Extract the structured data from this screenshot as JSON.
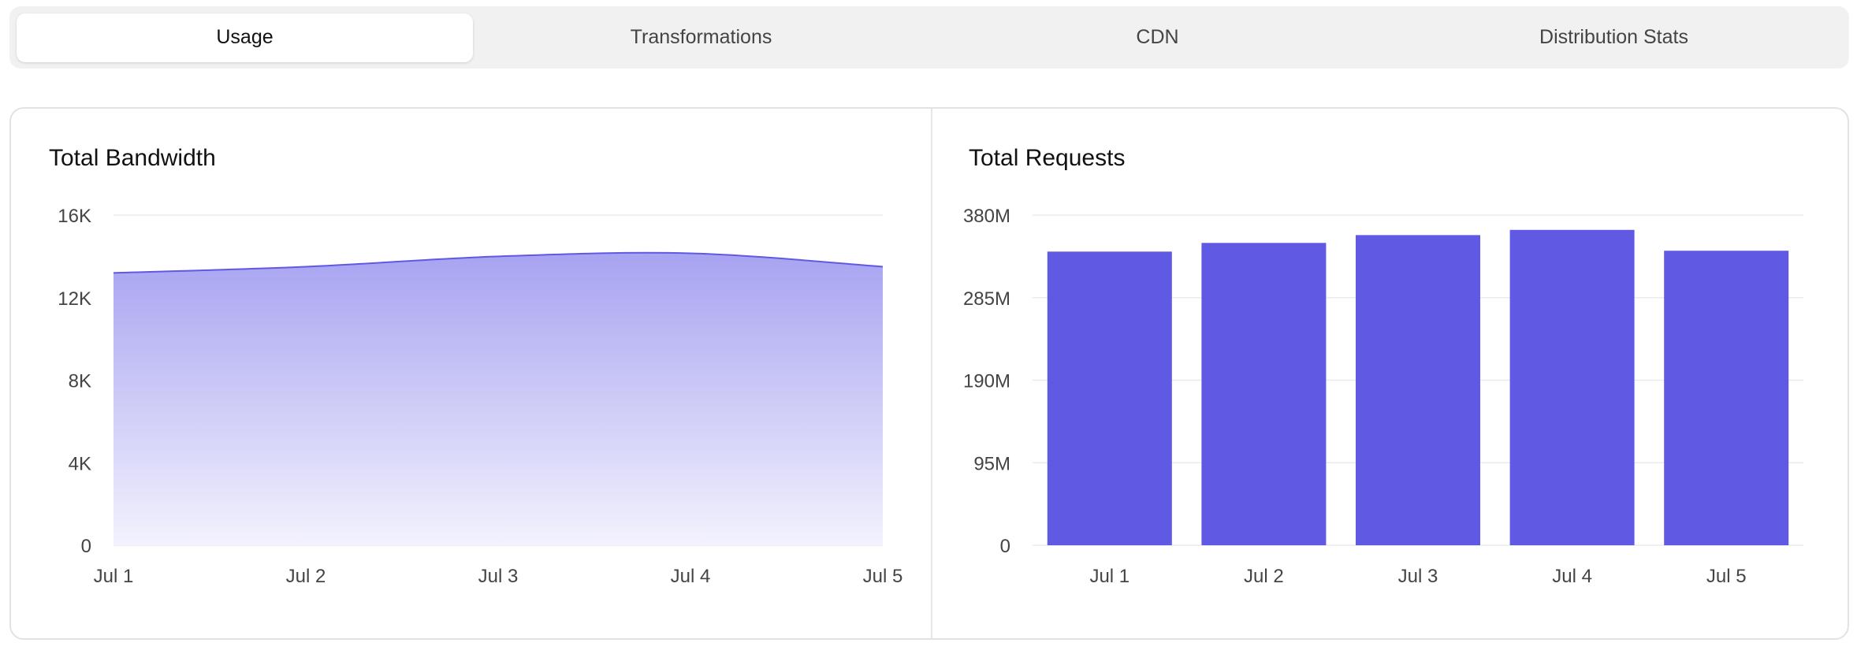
{
  "tabs": [
    {
      "label": "Usage",
      "active": true
    },
    {
      "label": "Transformations",
      "active": false
    },
    {
      "label": "CDN",
      "active": false
    },
    {
      "label": "Distribution Stats",
      "active": false
    }
  ],
  "colors": {
    "accent": "#5f59e3",
    "area_top": "#a7a3f1",
    "area_bottom": "#f3f2fd",
    "grid": "#ebebeb",
    "tick_text": "#444444"
  },
  "chart_data": [
    {
      "type": "area",
      "title": "Total Bandwidth",
      "x": [
        "Jul 1",
        "Jul 2",
        "Jul 3",
        "Jul 4",
        "Jul 5"
      ],
      "values": [
        13200,
        13500,
        14000,
        14150,
        13500
      ],
      "ylim": [
        0,
        16000
      ],
      "yticks": [
        0,
        4000,
        8000,
        12000,
        16000
      ],
      "ytick_labels": [
        "0",
        "4K",
        "8K",
        "12K",
        "16K"
      ],
      "grid": true,
      "legend": "none"
    },
    {
      "type": "bar",
      "title": "Total Requests",
      "categories": [
        "Jul 1",
        "Jul 2",
        "Jul 3",
        "Jul 4",
        "Jul 5"
      ],
      "values": [
        338000000,
        348000000,
        357000000,
        363000000,
        339000000
      ],
      "ylim": [
        0,
        380000000
      ],
      "yticks": [
        0,
        95000000,
        190000000,
        285000000,
        380000000
      ],
      "ytick_labels": [
        "0",
        "95M",
        "190M",
        "285M",
        "380M"
      ],
      "grid": true,
      "legend": "none"
    }
  ]
}
